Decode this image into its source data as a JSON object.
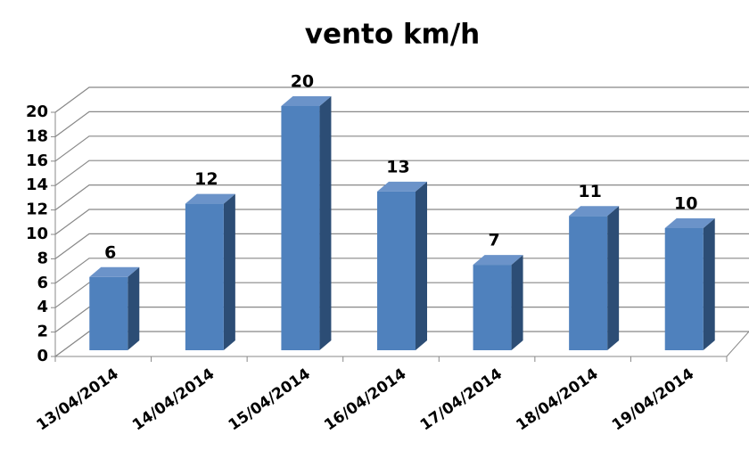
{
  "chart_data": {
    "type": "bar3d",
    "title": "vento km/h",
    "categories": [
      "13/04/2014",
      "14/04/2014",
      "15/04/2014",
      "16/04/2014",
      "17/04/2014",
      "18/04/2014",
      "19/04/2014"
    ],
    "values": [
      6,
      12,
      20,
      13,
      7,
      11,
      10
    ],
    "color": "#4f81bd",
    "ylim": [
      0,
      20
    ],
    "yticks": [
      0,
      2,
      4,
      6,
      8,
      10,
      12,
      14,
      16,
      18,
      20
    ],
    "grid": true
  }
}
